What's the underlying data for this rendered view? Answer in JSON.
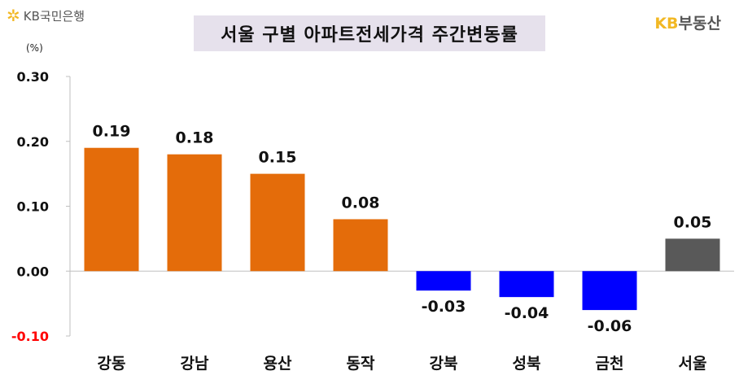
{
  "header": {
    "logo_text": "KB국민은행",
    "logo_icon": "kb-star-icon",
    "title": "서울 구별 아파트전세가격 주간변동률",
    "brand_kb": "KB",
    "brand_rest": "부동산"
  },
  "chart_data": {
    "type": "bar",
    "title": "서울 구별 아파트전세가격 주간변동률",
    "unit": "(%)",
    "categories": [
      "강동",
      "강남",
      "용산",
      "동작",
      "강북",
      "성북",
      "금천",
      "서울"
    ],
    "values": [
      0.19,
      0.18,
      0.15,
      0.08,
      -0.03,
      -0.04,
      -0.06,
      0.05
    ],
    "value_labels": [
      "0.19",
      "0.18",
      "0.15",
      "0.08",
      "-0.03",
      "-0.04",
      "-0.06",
      "0.05"
    ],
    "bar_colors": [
      "#e46c0a",
      "#e46c0a",
      "#e46c0a",
      "#e46c0a",
      "#0000ff",
      "#0000ff",
      "#0000ff",
      "#595959"
    ],
    "yticks": [
      0.3,
      0.2,
      0.1,
      0.0,
      -0.1
    ],
    "ytick_labels": [
      "0.30",
      "0.20",
      "0.10",
      "0.00",
      "-0.10"
    ],
    "ytick_colors": [
      "#111111",
      "#111111",
      "#111111",
      "#111111",
      "#ff0000"
    ],
    "ylim": [
      -0.1,
      0.3
    ],
    "grid": false,
    "legend": "none"
  }
}
